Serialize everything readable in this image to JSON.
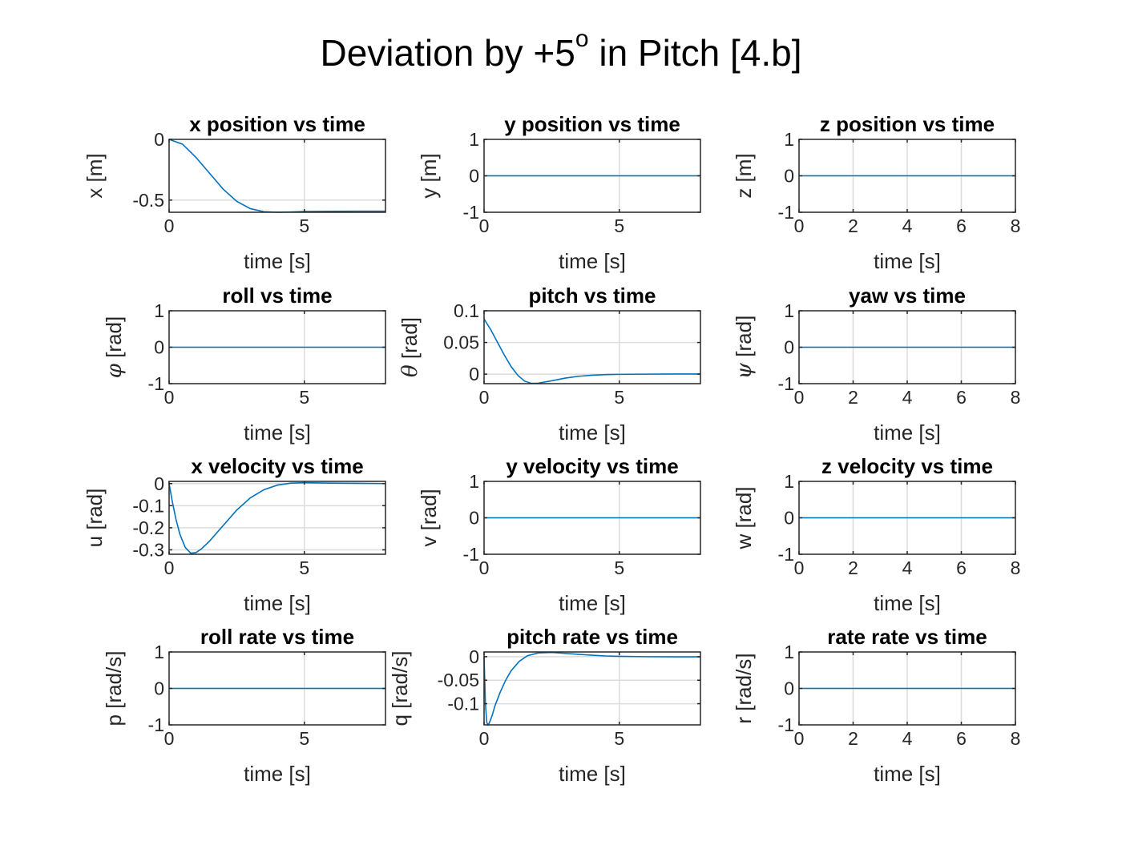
{
  "figure": {
    "title_main": "Deviation by +5",
    "title_sup": "o",
    "title_rest": " in Pitch [4.b]"
  },
  "colors": {
    "line": "#0072BD"
  },
  "chart_data": [
    {
      "type": "line",
      "title": "x position vs time",
      "xlabel": "time [s]",
      "ylabel_symbol": "",
      "ylabel_text": "x [m]",
      "xlim": [
        0,
        8
      ],
      "ylim": [
        -0.6,
        0
      ],
      "xticks": [
        0,
        5
      ],
      "xtick_labels": [
        "0",
        "5"
      ],
      "yticks": [
        -0.5,
        0
      ],
      "ytick_labels": [
        "-0.5",
        "0"
      ],
      "x": [
        0,
        0.5,
        1,
        1.5,
        2,
        2.5,
        3,
        3.5,
        4,
        4.5,
        5,
        6,
        7,
        8
      ],
      "y": [
        0,
        -0.04,
        -0.15,
        -0.28,
        -0.41,
        -0.51,
        -0.57,
        -0.595,
        -0.6,
        -0.598,
        -0.594,
        -0.592,
        -0.591,
        -0.591
      ]
    },
    {
      "type": "line",
      "title": "y position vs time",
      "xlabel": "time [s]",
      "ylabel_symbol": "",
      "ylabel_text": "y [m]",
      "xlim": [
        0,
        8
      ],
      "ylim": [
        -1,
        1
      ],
      "xticks": [
        0,
        5
      ],
      "xtick_labels": [
        "0",
        "5"
      ],
      "yticks": [
        -1,
        0,
        1
      ],
      "ytick_labels": [
        "-1",
        "0",
        "1"
      ],
      "x": [
        0,
        8
      ],
      "y": [
        0,
        0
      ]
    },
    {
      "type": "line",
      "title": "z position vs time",
      "xlabel": "time [s]",
      "ylabel_symbol": "",
      "ylabel_text": "z [m]",
      "xlim": [
        0,
        8
      ],
      "ylim": [
        -1,
        1
      ],
      "xticks": [
        0,
        2,
        4,
        6,
        8
      ],
      "xtick_labels": [
        "0",
        "2",
        "4",
        "6",
        "8"
      ],
      "yticks": [
        -1,
        0,
        1
      ],
      "ytick_labels": [
        "-1",
        "0",
        "1"
      ],
      "x": [
        0,
        8
      ],
      "y": [
        0,
        0
      ]
    },
    {
      "type": "line",
      "title": "roll vs time",
      "xlabel": "time [s]",
      "ylabel_symbol": "φ",
      "ylabel_text": " [rad]",
      "xlim": [
        0,
        8
      ],
      "ylim": [
        -1,
        1
      ],
      "xticks": [
        0,
        5
      ],
      "xtick_labels": [
        "0",
        "5"
      ],
      "yticks": [
        -1,
        0,
        1
      ],
      "ytick_labels": [
        "-1",
        "0",
        "1"
      ],
      "x": [
        0,
        8
      ],
      "y": [
        0,
        0
      ]
    },
    {
      "type": "line",
      "title": "pitch vs time",
      "xlabel": "time [s]",
      "ylabel_symbol": "θ",
      "ylabel_text": " [rad]",
      "xlim": [
        0,
        8
      ],
      "ylim": [
        -0.015,
        0.1
      ],
      "xticks": [
        0,
        5
      ],
      "xtick_labels": [
        "0",
        "5"
      ],
      "yticks": [
        0,
        0.05,
        0.1
      ],
      "ytick_labels": [
        "0",
        "0.05",
        "0.1"
      ],
      "x": [
        0,
        0.25,
        0.5,
        0.75,
        1,
        1.25,
        1.5,
        1.75,
        2,
        2.5,
        3,
        3.5,
        4,
        4.5,
        5,
        6,
        7,
        8
      ],
      "y": [
        0.087,
        0.07,
        0.05,
        0.03,
        0.012,
        -0.002,
        -0.011,
        -0.0145,
        -0.0142,
        -0.0105,
        -0.0062,
        -0.0033,
        -0.0016,
        -0.0007,
        -0.0003,
        0,
        0.0002,
        0.0002
      ]
    },
    {
      "type": "line",
      "title": "yaw vs time",
      "xlabel": "time [s]",
      "ylabel_symbol": "ψ",
      "ylabel_text": " [rad]",
      "xlim": [
        0,
        8
      ],
      "ylim": [
        -1,
        1
      ],
      "xticks": [
        0,
        2,
        4,
        6,
        8
      ],
      "xtick_labels": [
        "0",
        "2",
        "4",
        "6",
        "8"
      ],
      "yticks": [
        -1,
        0,
        1
      ],
      "ytick_labels": [
        "-1",
        "0",
        "1"
      ],
      "x": [
        0,
        8
      ],
      "y": [
        0,
        0
      ]
    },
    {
      "type": "line",
      "title": "x velocity vs time",
      "xlabel": "time [s]",
      "ylabel_symbol": "",
      "ylabel_text": "u [rad]",
      "xlim": [
        0,
        8
      ],
      "ylim": [
        -0.32,
        0.01
      ],
      "xticks": [
        0,
        5
      ],
      "xtick_labels": [
        "0",
        "5"
      ],
      "yticks": [
        -0.3,
        -0.2,
        -0.1,
        0
      ],
      "ytick_labels": [
        "-0.3",
        "-0.2",
        "-0.1",
        "0"
      ],
      "x": [
        0,
        0.1,
        0.25,
        0.4,
        0.6,
        0.8,
        1,
        1.2,
        1.5,
        2,
        2.5,
        3,
        3.5,
        4,
        4.5,
        5,
        6,
        7,
        8
      ],
      "y": [
        0,
        -0.07,
        -0.16,
        -0.23,
        -0.29,
        -0.315,
        -0.312,
        -0.295,
        -0.26,
        -0.19,
        -0.12,
        -0.065,
        -0.028,
        -0.007,
        0.002,
        0.004,
        0.002,
        0.001,
        0
      ]
    },
    {
      "type": "line",
      "title": "y velocity vs time",
      "xlabel": "time [s]",
      "ylabel_symbol": "",
      "ylabel_text": "v [rad]",
      "xlim": [
        0,
        8
      ],
      "ylim": [
        -1,
        1
      ],
      "xticks": [
        0,
        5
      ],
      "xtick_labels": [
        "0",
        "5"
      ],
      "yticks": [
        -1,
        0,
        1
      ],
      "ytick_labels": [
        "-1",
        "0",
        "1"
      ],
      "x": [
        0,
        8
      ],
      "y": [
        0,
        0
      ]
    },
    {
      "type": "line",
      "title": "z velocity vs time",
      "xlabel": "time [s]",
      "ylabel_symbol": "",
      "ylabel_text": "w [rad]",
      "xlim": [
        0,
        8
      ],
      "ylim": [
        -1,
        1
      ],
      "xticks": [
        0,
        2,
        4,
        6,
        8
      ],
      "xtick_labels": [
        "0",
        "2",
        "4",
        "6",
        "8"
      ],
      "yticks": [
        -1,
        0,
        1
      ],
      "ytick_labels": [
        "-1",
        "0",
        "1"
      ],
      "x": [
        0,
        8
      ],
      "y": [
        0,
        0
      ]
    },
    {
      "type": "line",
      "title": "roll rate vs time",
      "xlabel": "time [s]",
      "ylabel_symbol": "",
      "ylabel_text": "p [rad/s]",
      "xlim": [
        0,
        8
      ],
      "ylim": [
        -1,
        1
      ],
      "xticks": [
        0,
        5
      ],
      "xtick_labels": [
        "0",
        "5"
      ],
      "yticks": [
        -1,
        0,
        1
      ],
      "ytick_labels": [
        "-1",
        "0",
        "1"
      ],
      "x": [
        0,
        8
      ],
      "y": [
        0,
        0
      ]
    },
    {
      "type": "line",
      "title": "pitch rate vs time",
      "xlabel": "time [s]",
      "ylabel_symbol": "",
      "ylabel_text": "q [rad/s]",
      "xlim": [
        0,
        8
      ],
      "ylim": [
        -0.145,
        0.01
      ],
      "xticks": [
        0,
        5
      ],
      "xtick_labels": [
        "0",
        "5"
      ],
      "yticks": [
        -0.1,
        -0.05,
        0
      ],
      "ytick_labels": [
        "-0.1",
        "-0.05",
        "0"
      ],
      "x": [
        0,
        0.05,
        0.1,
        0.15,
        0.2,
        0.3,
        0.4,
        0.6,
        0.8,
        1,
        1.3,
        1.6,
        2,
        2.5,
        3,
        3.5,
        4,
        4.5,
        5,
        6,
        7,
        8
      ],
      "y": [
        0,
        -0.1,
        -0.14,
        -0.145,
        -0.14,
        -0.125,
        -0.105,
        -0.075,
        -0.05,
        -0.03,
        -0.01,
        0.002,
        0.008,
        0.009,
        0.007,
        0.005,
        0.003,
        0.0015,
        0.0008,
        0,
        -0.0003,
        -0.0003
      ]
    },
    {
      "type": "line",
      "title": "rate rate vs time",
      "xlabel": "time [s]",
      "ylabel_symbol": "",
      "ylabel_text": "r [rad/s]",
      "xlim": [
        0,
        8
      ],
      "ylim": [
        -1,
        1
      ],
      "xticks": [
        0,
        2,
        4,
        6,
        8
      ],
      "xtick_labels": [
        "0",
        "2",
        "4",
        "6",
        "8"
      ],
      "yticks": [
        -1,
        0,
        1
      ],
      "ytick_labels": [
        "-1",
        "0",
        "1"
      ],
      "x": [
        0,
        8
      ],
      "y": [
        0,
        0
      ]
    }
  ]
}
